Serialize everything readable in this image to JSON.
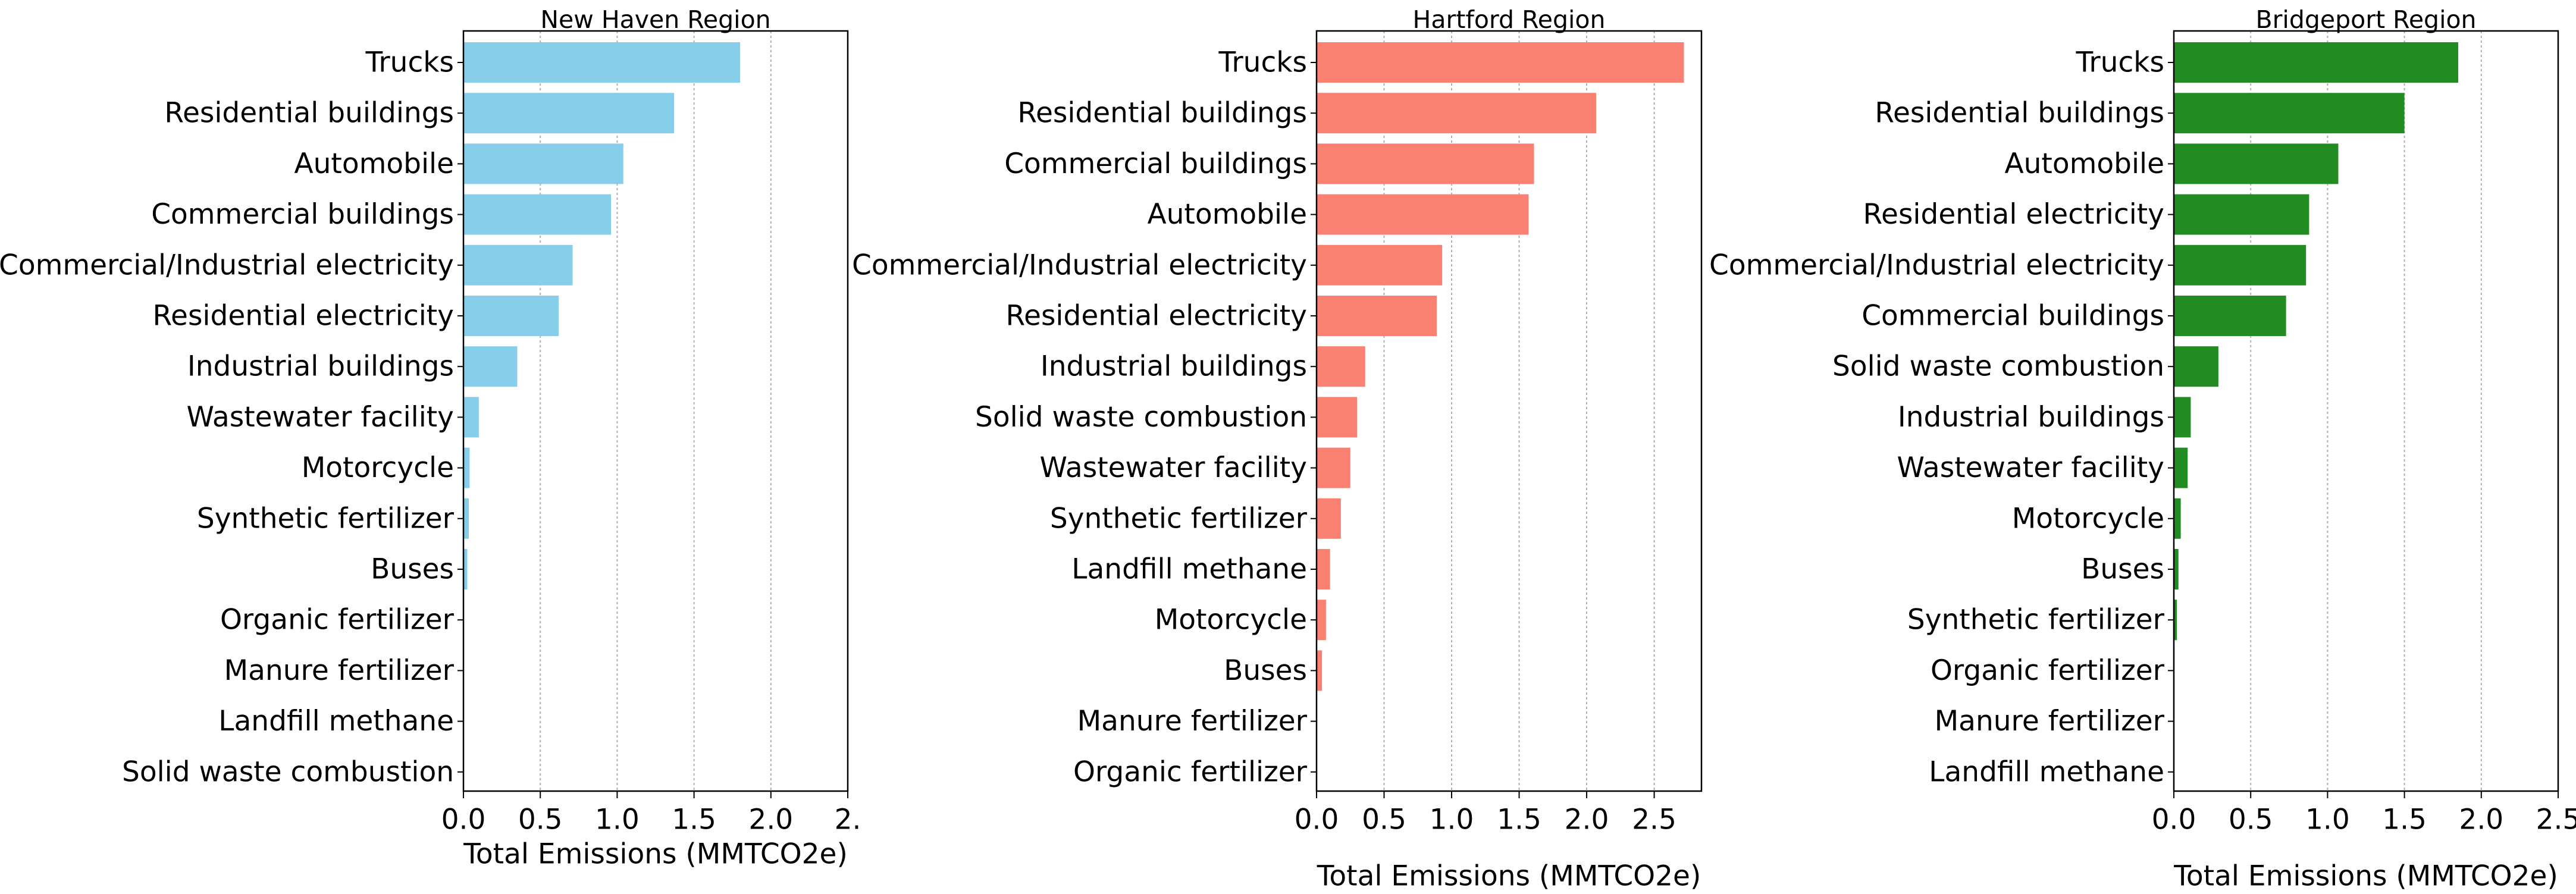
{
  "chart_data": [
    {
      "type": "bar",
      "orientation": "horizontal",
      "title": "New Haven Region",
      "xlabel": "Total Emissions (MMTCO2e)",
      "xlim": [
        0,
        2.5
      ],
      "xticks": [
        "0.0",
        "0.5",
        "1.0",
        "1.5",
        "2.0",
        "2."
      ],
      "grid": "x",
      "color": "#87CEEB",
      "categories": [
        "Trucks",
        "Residential buildings",
        "Automobile",
        "Commercial buildings",
        "Commercial/Industrial electricity",
        "Residential electricity",
        "Industrial buildings",
        "Wastewater facility",
        "Motorcycle",
        "Synthetic fertilizer",
        "Buses",
        "Organic fertilizer",
        "Manure fertilizer",
        "Landfill methane",
        "Solid waste combustion"
      ],
      "values": [
        1.8,
        1.37,
        1.04,
        0.96,
        0.71,
        0.62,
        0.35,
        0.1,
        0.04,
        0.035,
        0.025,
        0.003,
        0.002,
        0.001,
        0.0005
      ]
    },
    {
      "type": "bar",
      "orientation": "horizontal",
      "title": "Hartford Region",
      "xlabel": "Total Emissions (MMTCO2e)",
      "xlim": [
        0,
        2.85
      ],
      "xticks": [
        "0.0",
        "0.5",
        "1.0",
        "1.5",
        "2.0",
        "2.5"
      ],
      "grid": "x",
      "color": "#FA8072",
      "categories": [
        "Trucks",
        "Residential buildings",
        "Commercial buildings",
        "Automobile",
        "Commercial/Industrial electricity",
        "Residential electricity",
        "Industrial buildings",
        "Solid waste combustion",
        "Wastewater facility",
        "Synthetic fertilizer",
        "Landfill methane",
        "Motorcycle",
        "Buses",
        "Manure fertilizer",
        "Organic fertilizer"
      ],
      "values": [
        2.72,
        2.07,
        1.61,
        1.57,
        0.93,
        0.89,
        0.36,
        0.3,
        0.25,
        0.18,
        0.1,
        0.07,
        0.04,
        0.004,
        0.002
      ]
    },
    {
      "type": "bar",
      "orientation": "horizontal",
      "title": "Bridgeport Region",
      "xlabel": "Total Emissions (MMTCO2e)",
      "xlim": [
        0,
        2.5
      ],
      "xticks": [
        "0.0",
        "0.5",
        "1.0",
        "1.5",
        "2.0",
        "2.5"
      ],
      "grid": "x",
      "color": "#228B22",
      "categories": [
        "Trucks",
        "Residential buildings",
        "Automobile",
        "Residential electricity",
        "Commercial/Industrial electricity",
        "Commercial buildings",
        "Solid waste combustion",
        "Industrial buildings",
        "Wastewater facility",
        "Motorcycle",
        "Buses",
        "Synthetic fertilizer",
        "Organic fertilizer",
        "Manure fertilizer",
        "Landfill methane"
      ],
      "values": [
        1.85,
        1.5,
        1.07,
        0.88,
        0.86,
        0.73,
        0.29,
        0.11,
        0.09,
        0.045,
        0.03,
        0.02,
        0.004,
        0.003,
        0.002
      ]
    }
  ]
}
